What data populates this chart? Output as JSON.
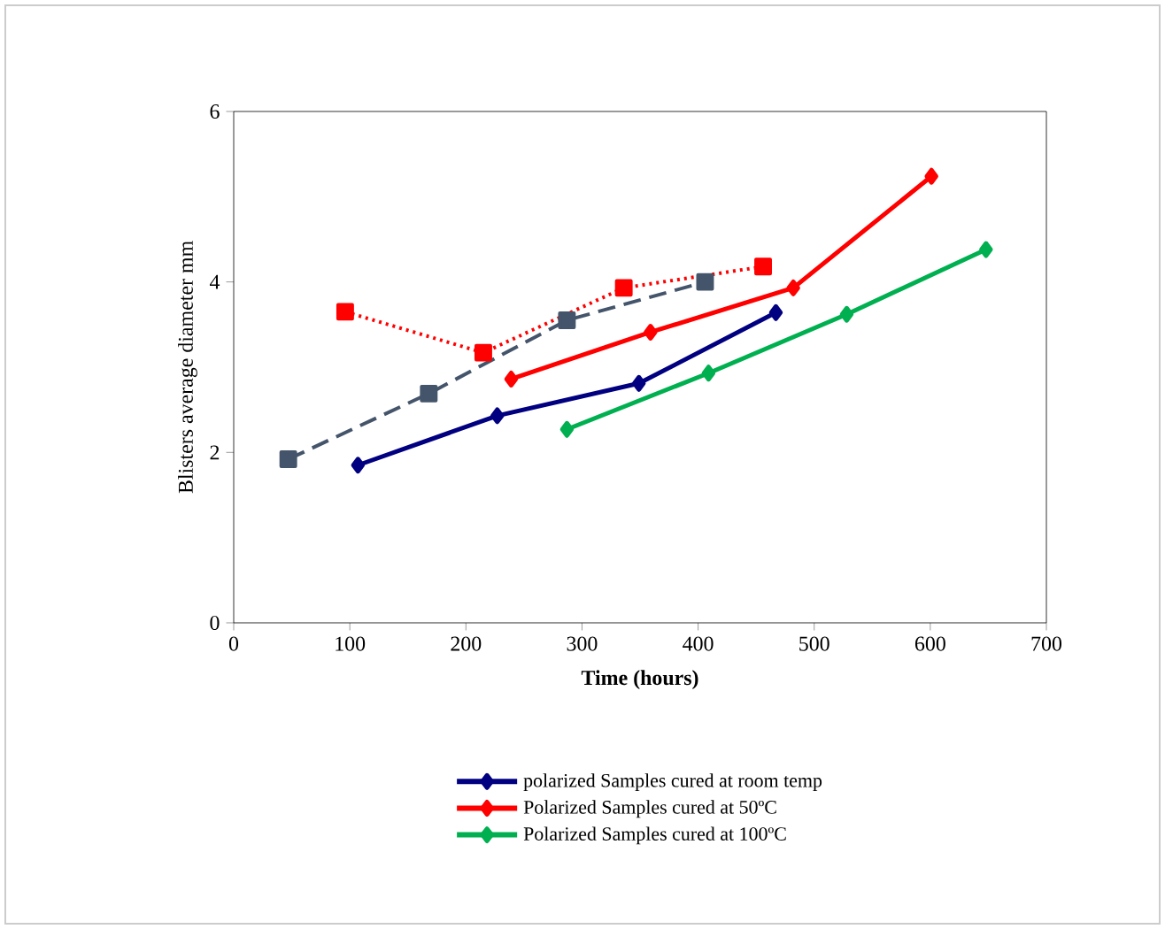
{
  "chart_data": {
    "type": "line",
    "xlabel": "Time (hours)",
    "ylabel": "Blisters average diameter mm",
    "xlim": [
      0,
      700
    ],
    "xticks": [
      0,
      100,
      200,
      300,
      400,
      500,
      600,
      700
    ],
    "ylim": [
      0,
      6
    ],
    "yticks": [
      0,
      2,
      4,
      6
    ],
    "grid": false,
    "legend": "bottom",
    "series": [
      {
        "name": "polarized  Samples cured at room temp",
        "color": "#000080",
        "marker": "diamond",
        "line_style": "solid",
        "x": [
          107,
          227,
          349,
          467
        ],
        "values": [
          1.85,
          2.43,
          2.81,
          3.64
        ]
      },
      {
        "name": "Polarized Samples cured at 50ºC",
        "color": "#ff0000",
        "marker": "diamond",
        "line_style": "solid",
        "x": [
          239,
          359,
          482,
          601
        ],
        "values": [
          2.86,
          3.41,
          3.93,
          5.24
        ]
      },
      {
        "name": "Polarized Samples cured at 100ºC",
        "color": "#00b050",
        "marker": "diamond",
        "line_style": "solid",
        "x": [
          287,
          409,
          528,
          648
        ],
        "values": [
          2.27,
          2.93,
          3.62,
          4.38
        ]
      },
      {
        "color": "#44546a",
        "marker": "square",
        "line_style": "dashed",
        "x": [
          47,
          168,
          287,
          406
        ],
        "values": [
          1.92,
          2.69,
          3.55,
          4.0
        ]
      },
      {
        "color": "#ff0000",
        "marker": "square",
        "line_style": "dotted",
        "x": [
          96,
          215,
          336,
          456
        ],
        "values": [
          3.65,
          3.17,
          3.93,
          4.18
        ]
      }
    ]
  }
}
